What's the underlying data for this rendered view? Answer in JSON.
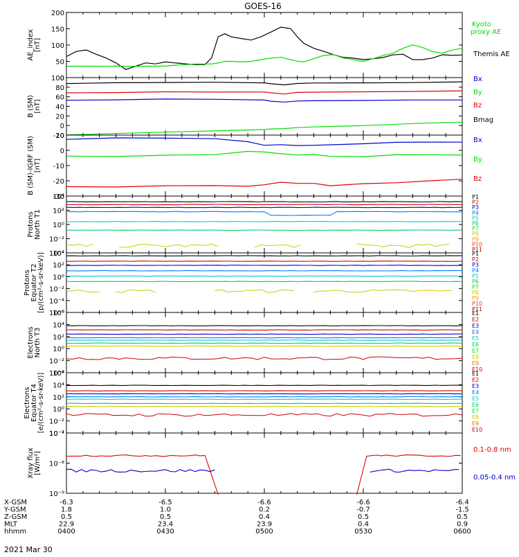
{
  "title": "GOES-16",
  "date_label": "2021 Mar 30",
  "time_axis": {
    "start": "0400",
    "end": "0600",
    "ticks": [
      "0400",
      "0430",
      "0500",
      "0530",
      "0600"
    ]
  },
  "ephemeris": {
    "labels": [
      "X-GSM",
      "Y-GSM",
      "Z-GSM",
      "MLT",
      "hhmm"
    ],
    "rows": [
      [
        "-6.3",
        "-6.5",
        "-6.6",
        "-6.6",
        "-6.4"
      ],
      [
        "1.8",
        "1.0",
        "0.2",
        "-0.7",
        "-1.5"
      ],
      [
        "0.5",
        "0.5",
        "0.4",
        "0.5",
        "0.5"
      ],
      [
        "22.9",
        "23.4",
        "23.9",
        "0.4",
        "0.9"
      ],
      [
        "0400",
        "0430",
        "0500",
        "0530",
        "0600"
      ]
    ]
  },
  "colors": {
    "black": "#000000",
    "green": "#00dd00",
    "blue": "#0000cc",
    "red": "#dd0000",
    "p_channels": [
      "#000000",
      "#cc0000",
      "#0000cc",
      "#0077ff",
      "#00cccc",
      "#00cc66",
      "#00ee00",
      "#cccc00",
      "#ff9900",
      "#ff3300",
      "#aa0000"
    ],
    "e_channels": [
      "#000000",
      "#cc0000",
      "#0000cc",
      "#0077ff",
      "#00cccc",
      "#00cc66",
      "#00ee00",
      "#cccc00",
      "#ff6600",
      "#cc0000"
    ]
  },
  "chart_data": [
    {
      "id": "ae",
      "type": "line",
      "ylabel": [
        "AE_index",
        "[nT]"
      ],
      "ylim": [
        0,
        200
      ],
      "yticks": [
        "0",
        "50",
        "100",
        "150",
        "200"
      ],
      "x": [
        0,
        3,
        6,
        9,
        12,
        15,
        18,
        21,
        24,
        27,
        30,
        33,
        36,
        39,
        42,
        44,
        46,
        48,
        50,
        53,
        56,
        59,
        62,
        65,
        68,
        70,
        72,
        75,
        78,
        81,
        84,
        87,
        90,
        93,
        96,
        99,
        102,
        105,
        108,
        111,
        114,
        117,
        120
      ],
      "series": [
        {
          "name": "Themis AE",
          "color": "#000000",
          "values": [
            65,
            80,
            85,
            72,
            60,
            45,
            25,
            35,
            45,
            42,
            48,
            45,
            42,
            40,
            40,
            60,
            125,
            135,
            125,
            120,
            115,
            125,
            140,
            155,
            150,
            125,
            105,
            90,
            80,
            70,
            62,
            60,
            55,
            58,
            62,
            70,
            72,
            55,
            55,
            60,
            70,
            68,
            70
          ]
        },
        {
          "name": "Kyoto proxy AE",
          "color": "#00dd00",
          "values": [
            35,
            35,
            35,
            35,
            35,
            35,
            35,
            35,
            35,
            35,
            35,
            38,
            40,
            42,
            42,
            42,
            45,
            50,
            50,
            48,
            50,
            55,
            60,
            62,
            55,
            50,
            48,
            58,
            68,
            70,
            60,
            55,
            50,
            58,
            68,
            75,
            90,
            100,
            92,
            80,
            75,
            85,
            90
          ]
        }
      ],
      "legend": [
        {
          "text": "Kyoto",
          "color": "#00dd00"
        },
        {
          "text": "proxy AE",
          "color": "#00dd00"
        },
        {
          "text": "Themis AE",
          "color": "#000000"
        }
      ]
    },
    {
      "id": "bsm",
      "type": "line",
      "ylabel": [
        "B (SM)",
        "[nT]"
      ],
      "ylim": [
        -20,
        100
      ],
      "yticks": [
        "-20",
        "0",
        "20",
        "40",
        "60",
        "80",
        "100"
      ],
      "x": [
        0,
        15,
        30,
        45,
        60,
        62,
        66,
        70,
        75,
        90,
        105,
        120
      ],
      "series": [
        {
          "name": "Bx",
          "color": "#0000cc",
          "values": [
            53,
            54,
            55,
            55,
            53,
            51,
            49,
            51,
            52,
            52,
            53,
            53
          ]
        },
        {
          "name": "By",
          "color": "#00dd00",
          "values": [
            -20,
            -17,
            -14,
            -11,
            -8,
            -7,
            -6,
            -4,
            -3,
            0,
            4,
            7
          ]
        },
        {
          "name": "Bz",
          "color": "#dd0000",
          "values": [
            68,
            69,
            70,
            70,
            70,
            68,
            66,
            69,
            70,
            70,
            71,
            72
          ]
        },
        {
          "name": "Bmag",
          "color": "#000000",
          "values": [
            88,
            89,
            90,
            90,
            89,
            87,
            85,
            88,
            89,
            89,
            90,
            91
          ]
        }
      ]
    },
    {
      "id": "bsm-igrf",
      "type": "line",
      "ylabel": [
        "B (SM)-IGRF (SM)",
        "[nT]"
      ],
      "ylim": [
        -30,
        10
      ],
      "yticks": [
        "-30",
        "-20",
        "-10",
        "0",
        "10"
      ],
      "x": [
        0,
        15,
        30,
        45,
        55,
        60,
        65,
        70,
        75,
        80,
        90,
        100,
        110,
        120
      ],
      "series": [
        {
          "name": "Bx",
          "color": "#0000cc",
          "values": [
            7,
            8,
            8,
            8,
            6,
            3,
            4,
            3,
            3,
            4,
            4,
            5,
            5,
            5
          ]
        },
        {
          "name": "By",
          "color": "#00dd00",
          "values": [
            -4,
            -4,
            -3,
            -3,
            -1,
            -1,
            -2,
            -3,
            -3,
            -4,
            -4,
            -3,
            -3,
            -3
          ]
        },
        {
          "name": "Bz",
          "color": "#dd0000",
          "values": [
            -24,
            -24,
            -23,
            -23,
            -24,
            -23,
            -21,
            -22,
            -22,
            -23,
            -22,
            -21,
            -20,
            -19
          ]
        }
      ]
    },
    {
      "id": "protons-t1",
      "type": "line",
      "log": true,
      "ylabel": [
        "Protons",
        "North T1"
      ],
      "ylim": [
        -4,
        4
      ],
      "yticks": [
        "10⁴",
        "10²",
        "10⁰",
        "10⁻²",
        "10⁻⁴"
      ],
      "channel_labels": [
        "P1",
        "P2",
        "P3",
        "P4",
        "P5",
        "P6",
        "P7",
        "P8",
        "P9",
        "P10",
        "P11"
      ],
      "levels": [
        3.2,
        2.8,
        2.4,
        1.8,
        0.4,
        -0.8
      ],
      "level_colors": [
        "#000000",
        "#cc0000",
        "#0000cc",
        "#0077ff",
        "#00cccc",
        "#00cc66"
      ],
      "dips": [
        {
          "x0": 62,
          "x1": 80,
          "dy": -0.5,
          "idx": 3
        }
      ],
      "noisy": {
        "color": "#cccc00",
        "level": -3.0,
        "segments": [
          [
            0,
            8
          ],
          [
            16,
            46
          ],
          [
            57,
            72
          ],
          [
            88,
            116
          ]
        ]
      }
    },
    {
      "id": "protons-t2",
      "type": "line",
      "log": true,
      "ylabel": [
        "Protons",
        "Equator T2",
        "[p/(cm²-s-sr-keV)]"
      ],
      "ylim": [
        -6,
        4
      ],
      "yticks": [
        "10⁴",
        "10²",
        "10⁰",
        "10⁻²",
        "10⁻⁴",
        "10⁻⁶"
      ],
      "channel_labels": [
        "P1",
        "P2",
        "P3",
        "P4",
        "P5",
        "P6",
        "P7",
        "P8",
        "P9",
        "P10",
        "P11"
      ],
      "levels": [
        3.5,
        2.6,
        1.9,
        1.0,
        0.1,
        -0.8
      ],
      "level_colors": [
        "#000000",
        "#cc0000",
        "#0000cc",
        "#0077ff",
        "#00cccc",
        "#00cc66"
      ],
      "dips": [],
      "noisy": {
        "color": "#cccc00",
        "level": -2.4,
        "segments": [
          [
            0,
            10
          ],
          [
            15,
            28
          ],
          [
            45,
            70
          ],
          [
            75,
            118
          ]
        ]
      }
    },
    {
      "id": "electrons-t3",
      "type": "line",
      "log": true,
      "ylabel": [
        "Electrons",
        "North T3"
      ],
      "ylim": [
        -4,
        6
      ],
      "yticks": [
        "10⁶",
        "10⁴",
        "10²",
        "10⁰",
        "10⁻²",
        "10⁻⁴"
      ],
      "channel_labels": [
        "E1",
        "E2",
        "E3",
        "E4",
        "E5",
        "E6",
        "E7",
        "E8",
        "E9",
        "E10"
      ],
      "levels": [
        3.8,
        3.1,
        2.4,
        1.8,
        1.4,
        0.9,
        0.4
      ],
      "level_colors": [
        "#000000",
        "#cc0000",
        "#0000cc",
        "#0077ff",
        "#00cccc",
        "#00cc66",
        "#cccc00"
      ],
      "dips": [],
      "noisy": {
        "color": "#cc0000",
        "level": -1.6,
        "segments": [
          [
            0,
            120
          ]
        ]
      }
    },
    {
      "id": "electrons-t4",
      "type": "line",
      "log": true,
      "ylabel": [
        "Electrons",
        "Equator T4",
        "[e/(cm²-s-sr-keV)]"
      ],
      "ylim": [
        -4,
        6
      ],
      "yticks": [
        "10⁶",
        "10⁴",
        "10²",
        "10⁰",
        "10⁻²",
        "10⁻⁴"
      ],
      "channel_labels": [
        "E1",
        "E2",
        "E3",
        "E4",
        "E5",
        "E6",
        "E7",
        "E8",
        "E9",
        "E10"
      ],
      "levels": [
        3.9,
        3.0,
        2.5,
        2.0,
        1.6,
        0.9,
        0.4
      ],
      "level_colors": [
        "#000000",
        "#cc0000",
        "#0000cc",
        "#0077ff",
        "#00cccc",
        "#00cc66",
        "#cccc00"
      ],
      "dips": [],
      "noisy": {
        "color": "#cc0000",
        "level": -1.0,
        "segments": [
          [
            0,
            120
          ]
        ]
      }
    },
    {
      "id": "xray",
      "type": "line",
      "log": true,
      "ylabel": [
        "Xray flux",
        "[W/m²]"
      ],
      "ylim": [
        -9,
        -7
      ],
      "yticks": [
        "10⁻⁷",
        "10⁻⁸",
        "10⁻⁹"
      ],
      "series": [
        {
          "name": "0.1-0.8 nm",
          "color": "#dd0000",
          "level": -7.75,
          "segments": [
            [
              0,
              43
            ],
            [
              91,
              120
            ]
          ]
        },
        {
          "name": "0.05-0.4 nm",
          "color": "#0000cc",
          "level": -8.25,
          "segments": [
            [
              0,
              46
            ],
            [
              92,
              120
            ]
          ]
        }
      ],
      "legend": [
        {
          "text": "0.1-0.8 nm",
          "color": "#dd0000"
        },
        {
          "text": "0.05-0.4 nm",
          "color": "#0000cc"
        }
      ]
    }
  ]
}
